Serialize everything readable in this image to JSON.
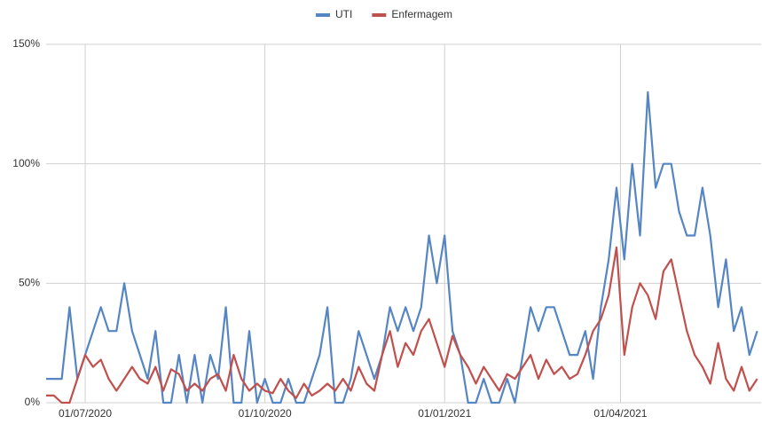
{
  "chart_data": {
    "type": "line",
    "x": [
      "2020-06-11",
      "2020-06-15",
      "2020-06-19",
      "2020-06-23",
      "2020-06-27",
      "2020-07-01",
      "2020-07-05",
      "2020-07-09",
      "2020-07-13",
      "2020-07-17",
      "2020-07-21",
      "2020-07-25",
      "2020-07-29",
      "2020-08-02",
      "2020-08-06",
      "2020-08-10",
      "2020-08-14",
      "2020-08-18",
      "2020-08-22",
      "2020-08-26",
      "2020-08-30",
      "2020-09-03",
      "2020-09-07",
      "2020-09-11",
      "2020-09-15",
      "2020-09-19",
      "2020-09-23",
      "2020-09-27",
      "2020-10-01",
      "2020-10-05",
      "2020-10-09",
      "2020-10-13",
      "2020-10-17",
      "2020-10-21",
      "2020-10-25",
      "2020-10-29",
      "2020-11-02",
      "2020-11-06",
      "2020-11-10",
      "2020-11-14",
      "2020-11-18",
      "2020-11-22",
      "2020-11-26",
      "2020-11-30",
      "2020-12-04",
      "2020-12-08",
      "2020-12-12",
      "2020-12-16",
      "2020-12-20",
      "2020-12-24",
      "2020-12-28",
      "2021-01-01",
      "2021-01-05",
      "2021-01-09",
      "2021-01-13",
      "2021-01-17",
      "2021-01-21",
      "2021-01-25",
      "2021-01-29",
      "2021-02-02",
      "2021-02-06",
      "2021-02-10",
      "2021-02-14",
      "2021-02-18",
      "2021-02-22",
      "2021-02-26",
      "2021-03-02",
      "2021-03-06",
      "2021-03-10",
      "2021-03-14",
      "2021-03-18",
      "2021-03-22",
      "2021-03-26",
      "2021-03-30",
      "2021-04-03",
      "2021-04-07",
      "2021-04-11",
      "2021-04-15",
      "2021-04-19",
      "2021-04-23",
      "2021-04-27",
      "2021-05-01",
      "2021-05-05",
      "2021-05-09",
      "2021-05-13",
      "2021-05-17",
      "2021-05-21",
      "2021-05-25",
      "2021-05-29",
      "2021-06-02",
      "2021-06-06",
      "2021-06-10"
    ],
    "series": [
      {
        "name": "UTI",
        "color": "#5585c3",
        "values": [
          10,
          10,
          10,
          40,
          10,
          20,
          30,
          40,
          30,
          30,
          50,
          30,
          20,
          10,
          30,
          0,
          0,
          20,
          0,
          20,
          0,
          20,
          10,
          40,
          0,
          0,
          30,
          0,
          10,
          0,
          0,
          10,
          0,
          0,
          10,
          20,
          40,
          0,
          0,
          10,
          30,
          20,
          10,
          20,
          40,
          30,
          40,
          30,
          40,
          70,
          50,
          70,
          30,
          20,
          0,
          0,
          10,
          0,
          0,
          10,
          0,
          20,
          40,
          30,
          40,
          40,
          30,
          20,
          20,
          30,
          10,
          40,
          60,
          90,
          60,
          100,
          70,
          130,
          90,
          100,
          100,
          80,
          70,
          70,
          90,
          70,
          40,
          60,
          30,
          40,
          20,
          30
        ]
      },
      {
        "name": "Enfermagem",
        "color": "#c0504d",
        "values": [
          3,
          3,
          0,
          0,
          10,
          20,
          15,
          18,
          10,
          5,
          10,
          15,
          10,
          8,
          15,
          5,
          14,
          12,
          5,
          8,
          5,
          10,
          12,
          5,
          20,
          10,
          5,
          8,
          5,
          4,
          10,
          5,
          2,
          8,
          3,
          5,
          8,
          5,
          10,
          5,
          15,
          8,
          5,
          20,
          30,
          15,
          25,
          20,
          30,
          35,
          25,
          15,
          28,
          20,
          15,
          8,
          15,
          10,
          5,
          12,
          10,
          15,
          20,
          10,
          18,
          12,
          15,
          10,
          12,
          20,
          30,
          35,
          45,
          65,
          20,
          40,
          50,
          45,
          35,
          55,
          60,
          45,
          30,
          20,
          15,
          8,
          25,
          10,
          5,
          15,
          5,
          10
        ]
      }
    ],
    "xlim": [
      "2020-06-11",
      "2021-06-12"
    ],
    "xticks": [
      {
        "value": "2020-07-01",
        "label": "01/07/2020"
      },
      {
        "value": "2020-10-01",
        "label": "01/10/2020"
      },
      {
        "value": "2021-01-01",
        "label": "01/01/2021"
      },
      {
        "value": "2021-04-01",
        "label": "01/04/2021"
      }
    ],
    "ylim": [
      0,
      150
    ],
    "yticks": [
      {
        "value": 0,
        "label": "0%"
      },
      {
        "value": 50,
        "label": "50%"
      },
      {
        "value": 100,
        "label": "100%"
      },
      {
        "value": 150,
        "label": "150%"
      }
    ],
    "grid": true,
    "legend": "top"
  }
}
